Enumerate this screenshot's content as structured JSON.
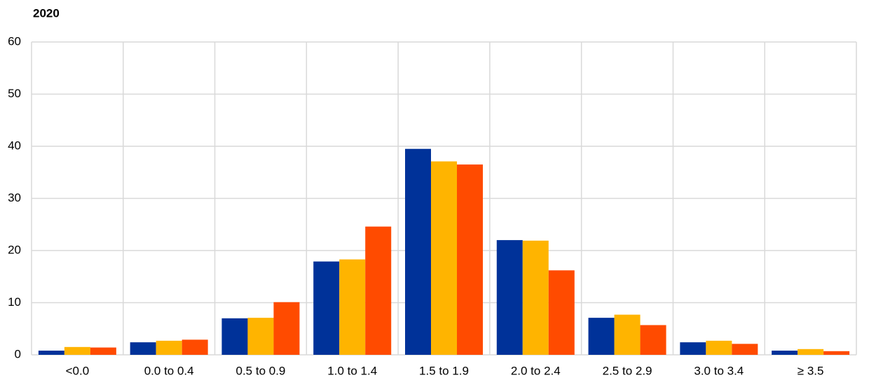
{
  "chart_data": {
    "type": "bar",
    "title": "2020",
    "categories": [
      "<0.0",
      "0.0 to 0.4",
      "0.5 to 0.9",
      "1.0 to 1.4",
      "1.5 to 1.9",
      "2.0 to 2.4",
      "2.5 to 2.9",
      "3.0 to 3.4",
      "≥ 3.5"
    ],
    "series": [
      {
        "color": "#003299",
        "values": [
          0.8,
          2.4,
          7.0,
          17.9,
          39.5,
          22.0,
          7.1,
          2.4,
          0.8
        ]
      },
      {
        "color": "#ffb400",
        "values": [
          1.5,
          2.7,
          7.1,
          18.3,
          37.1,
          21.9,
          7.7,
          2.7,
          1.1
        ]
      },
      {
        "color": "#ff4b00",
        "values": [
          1.4,
          2.9,
          10.1,
          24.6,
          36.5,
          16.2,
          5.7,
          2.1,
          0.7
        ]
      }
    ],
    "ylim": [
      0,
      60
    ],
    "yticks": [
      0,
      10,
      20,
      30,
      40,
      50,
      60
    ],
    "grid": true
  }
}
